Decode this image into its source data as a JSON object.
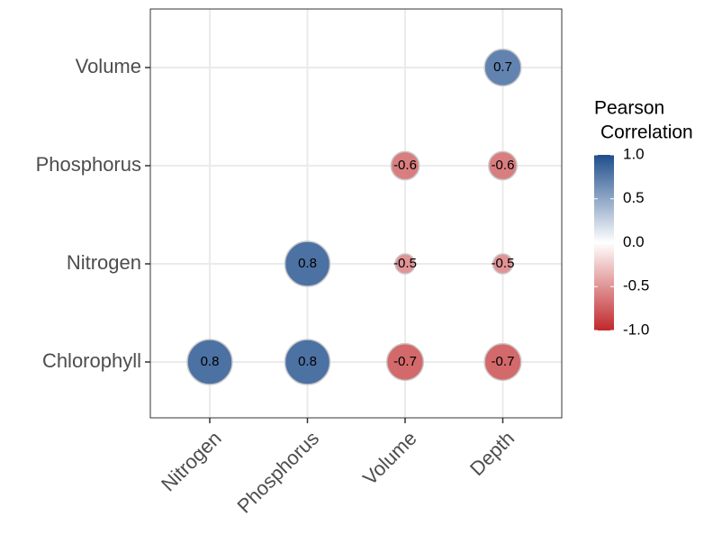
{
  "chart_data": {
    "type": "correlation-bubble",
    "x_categories": [
      "Nitrogen",
      "Phosphorus",
      "Volume",
      "Depth"
    ],
    "y_categories": [
      "Chlorophyll",
      "Nitrogen",
      "Phosphorus",
      "Volume"
    ],
    "values": [
      [
        0.8,
        0.8,
        -0.7,
        -0.7
      ],
      [
        null,
        0.8,
        -0.5,
        -0.5
      ],
      [
        null,
        null,
        -0.6,
        -0.6
      ],
      [
        null,
        null,
        null,
        0.7
      ]
    ],
    "colorbar": {
      "title": [
        "Pearson",
        "Correlation"
      ],
      "lim": [
        -1,
        1
      ],
      "ticks": [
        {
          "value": 1,
          "label": "1.0"
        },
        0.5,
        {
          "value": 0,
          "label": "0.0"
        },
        -0.5,
        {
          "value": -1,
          "label": "-1.0"
        }
      ],
      "low_color": "#c0282b",
      "mid_color": "#ffffff",
      "high_color": "#1f4e8c"
    },
    "grid": true
  }
}
